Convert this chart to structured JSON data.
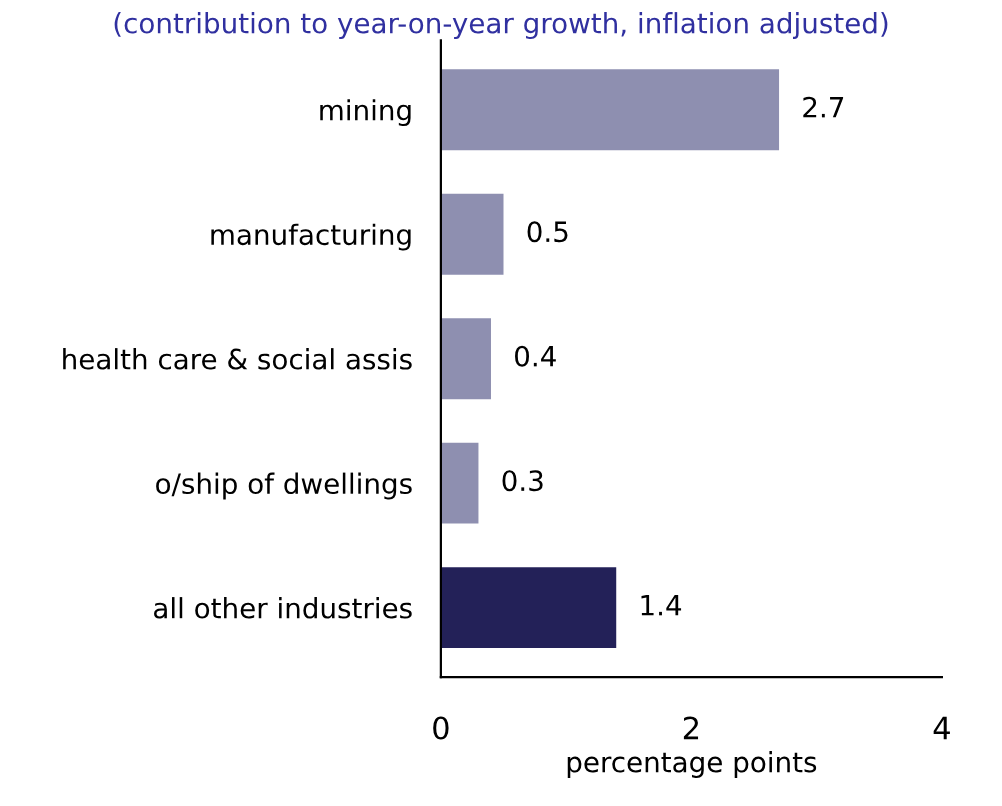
{
  "chart_data": {
    "type": "bar",
    "orientation": "horizontal",
    "subtitle": "(contribution to year-on-year growth, inflation adjusted)",
    "xlabel": "percentage points",
    "categories": [
      "mining",
      "manufacturing",
      "health care & social assis",
      "o/ship of dwellings",
      "all other industries"
    ],
    "values": [
      2.7,
      0.5,
      0.4,
      0.3,
      1.4
    ],
    "colors": [
      "#8e8fb0",
      "#8e8fb0",
      "#8e8fb0",
      "#8e8fb0",
      "#232158"
    ],
    "data_labels": true,
    "xlim": [
      0,
      4
    ],
    "xticks": [
      0,
      2,
      4
    ],
    "grid": false,
    "legend": false
  }
}
